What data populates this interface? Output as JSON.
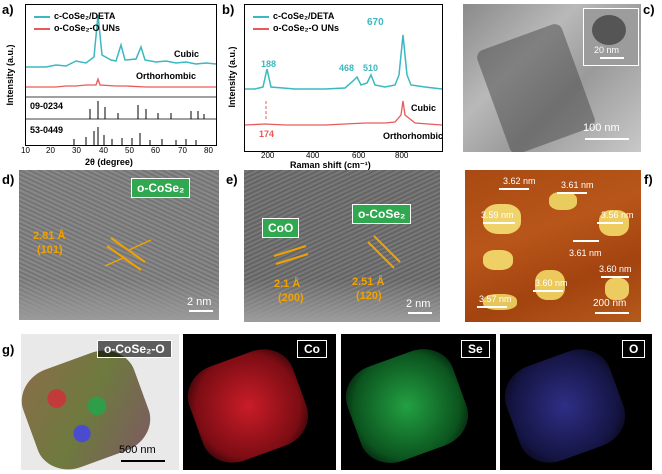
{
  "panels": {
    "a": {
      "label": "a)",
      "legend": [
        "c-CoSe₂/DETA",
        "o-CoSe₂-O UNs"
      ],
      "curve_labels": [
        "Cubic",
        "Orthorhombic"
      ],
      "ref_labels": [
        "09-0234",
        "53-0449"
      ],
      "xlabel": "2θ (degree)",
      "ylabel": "Intensity (a.u.)",
      "xticks": [
        "10",
        "20",
        "30",
        "40",
        "50",
        "60",
        "70",
        "80"
      ]
    },
    "b": {
      "label": "b)",
      "legend": [
        "c-CoSe₂/DETA",
        "o-CoSe₂-O UNs"
      ],
      "peaks": [
        "188",
        "468",
        "510",
        "670",
        "174"
      ],
      "curve_labels": [
        "Cubic",
        "Orthorhombic"
      ],
      "xlabel": "Raman shift (cm⁻¹)",
      "ylabel": "Intensity (a.u.)",
      "xticks": [
        "200",
        "400",
        "600",
        "800"
      ]
    },
    "c": {
      "label": "c)",
      "scale_main": "100 nm",
      "scale_inset": "20 nm"
    },
    "d": {
      "label": "d)",
      "phase": "o-CoSe₂",
      "spacing": "2.81 Å",
      "plane": "(101)",
      "scale": "2 nm"
    },
    "e": {
      "label": "e)",
      "phase_left": "CoO",
      "phase_right": "o-CoSe₂",
      "spacing_left": "2.1 Å",
      "plane_left": "(200)",
      "spacing_right": "2.51 Å",
      "plane_right": "(120)",
      "scale": "2 nm"
    },
    "f": {
      "label": "f)",
      "heights": [
        "3.62 nm",
        "3.61 nm",
        "3.59 nm",
        "3.56 nm",
        "3.61 nm",
        "3.60 nm",
        "3.60 nm",
        "3.57 nm"
      ],
      "scale": "200 nm"
    },
    "g": {
      "label": "g)",
      "maps": [
        "o-CoSe₂-O",
        "Co",
        "Se",
        "O"
      ],
      "scale": "500 nm",
      "colors": [
        "#b5a25c",
        "#e0202c",
        "#27b24a",
        "#5a5ae8"
      ]
    }
  },
  "colors": {
    "cubic": "#3bb8c0",
    "ortho": "#e85a5a",
    "green_tag": "#2fa84f",
    "annot": "#f2a200"
  }
}
